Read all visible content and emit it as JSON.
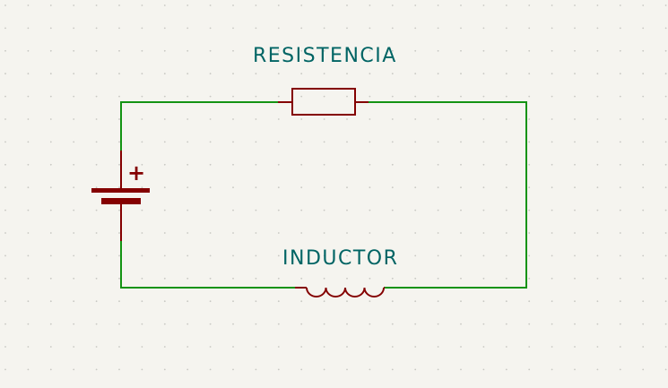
{
  "canvas": {
    "background_color": "#f5f4ef",
    "grid_dot_color": "#c8c8c3"
  },
  "colors": {
    "wire": "#139313",
    "component": "#840000",
    "label": "#006464"
  },
  "components": {
    "resistor": {
      "label": "RESISTENCIA",
      "symbol": "resistor-icon"
    },
    "inductor": {
      "label": "INDUCTOR",
      "symbol": "inductor-icon"
    },
    "battery": {
      "polarity_mark": "+",
      "symbol": "battery-icon"
    }
  }
}
